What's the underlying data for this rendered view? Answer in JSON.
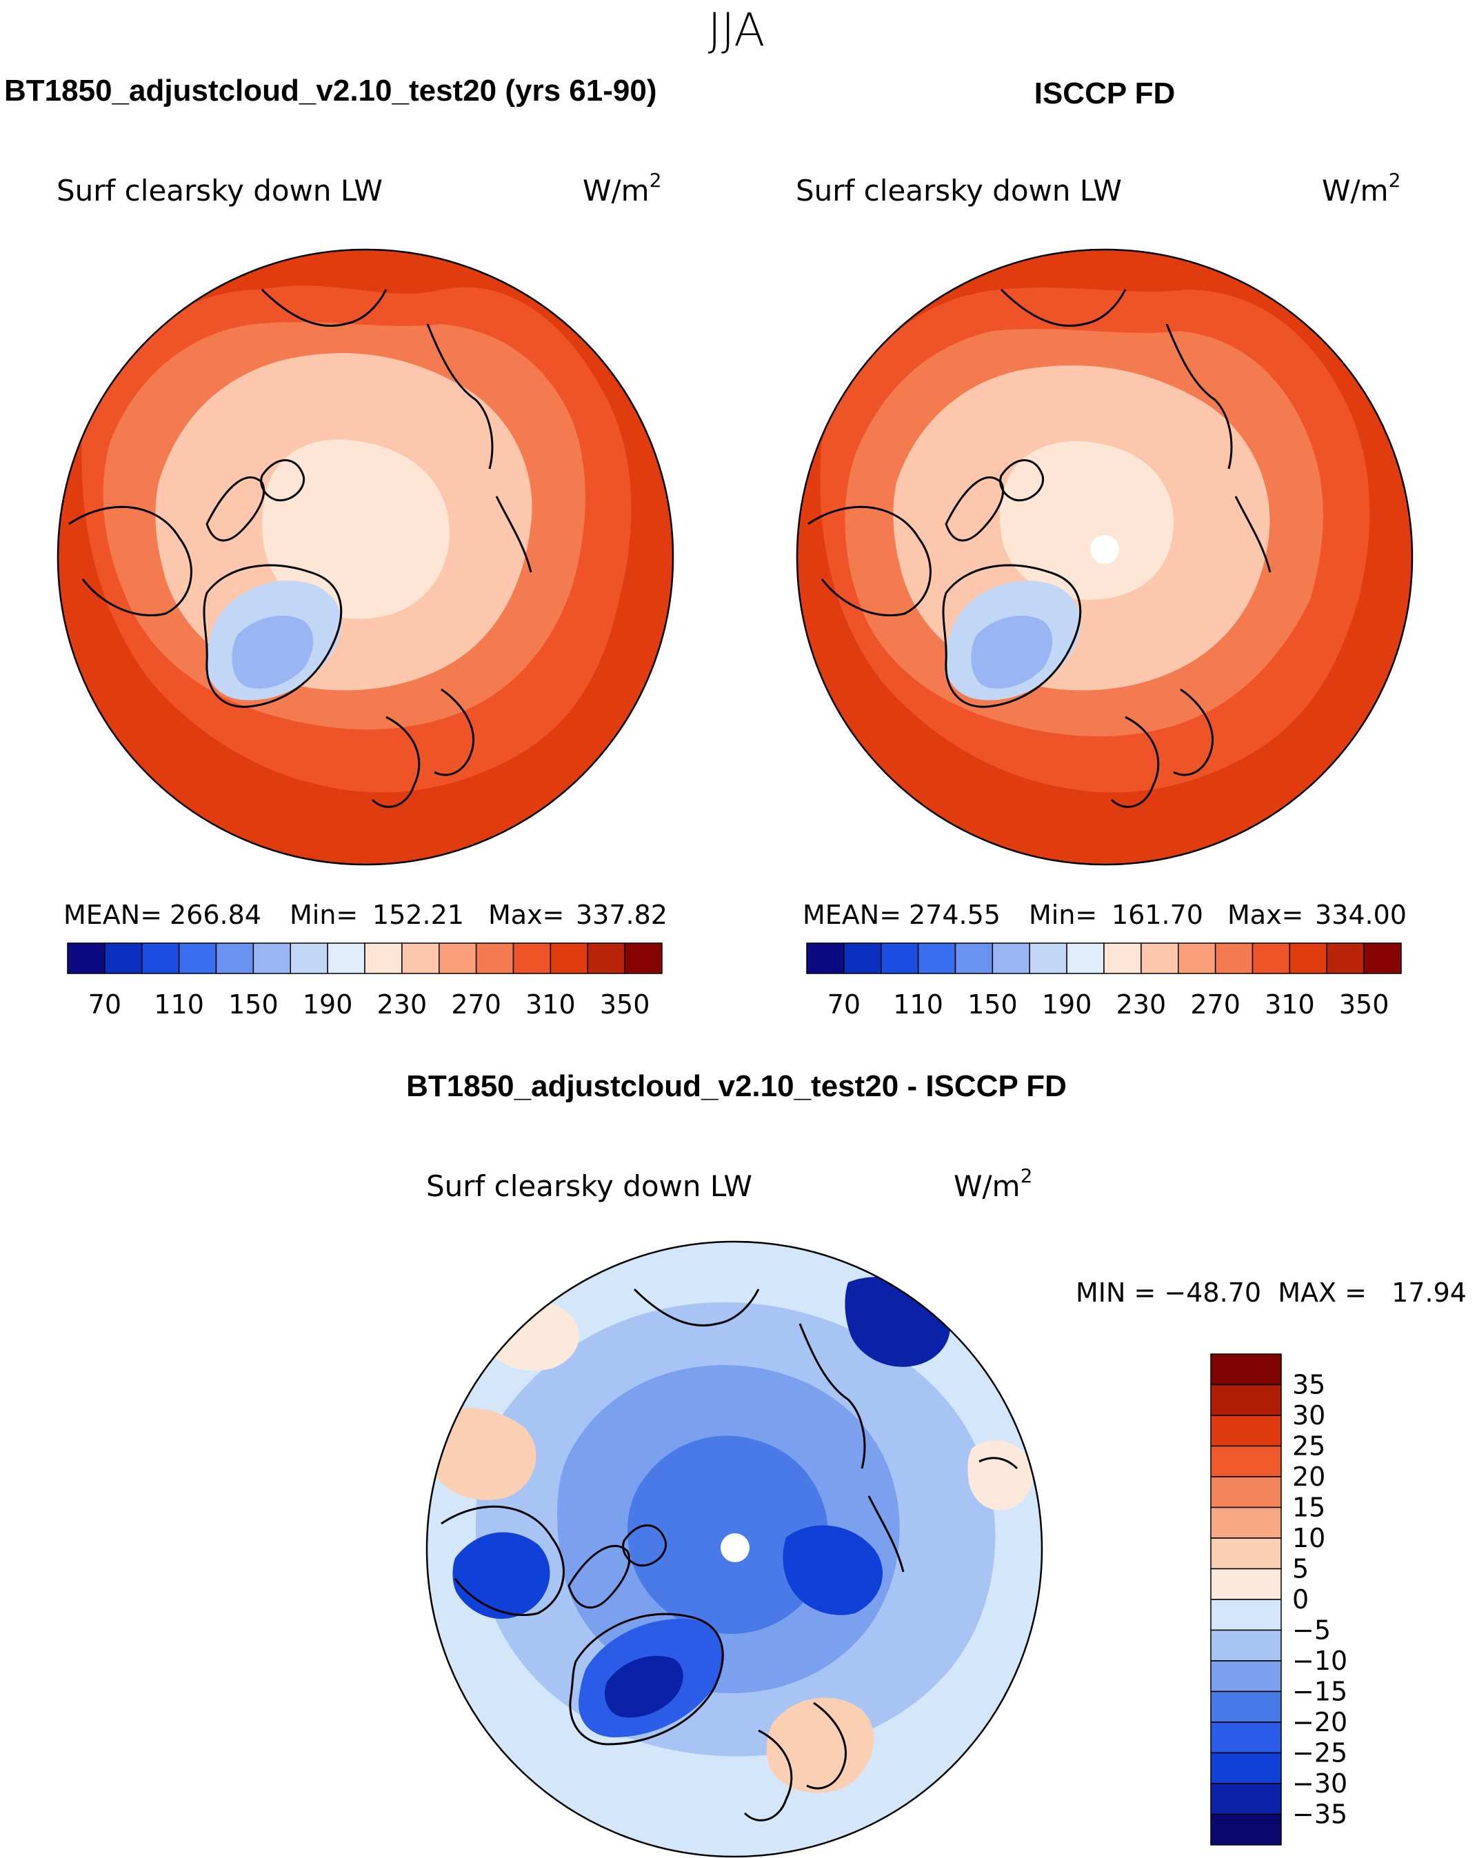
{
  "season": "JJA",
  "panels": {
    "model": {
      "title": "BT1850_adjustcloud_v2.10_test20 (yrs 61-90)",
      "var_label": "Surf clearsky down LW",
      "units": "W/m",
      "units_sup": "2",
      "stats": {
        "mean_label": "MEAN=",
        "mean": "266.84",
        "min_label": "Min=",
        "min": "152.21",
        "max_label": "Max=",
        "max": "337.82"
      },
      "colorbar_ticks": [
        "70",
        "110",
        "150",
        "190",
        "230",
        "270",
        "310",
        "350"
      ]
    },
    "obs": {
      "title": "ISCCP FD",
      "var_label": "Surf clearsky down LW",
      "units": "W/m",
      "units_sup": "2",
      "stats": {
        "mean_label": "MEAN=",
        "mean": "274.55",
        "min_label": "Min=",
        "min": "161.70",
        "max_label": "Max=",
        "max": "334.00"
      },
      "colorbar_ticks": [
        "70",
        "110",
        "150",
        "190",
        "230",
        "270",
        "310",
        "350"
      ]
    },
    "diff": {
      "title": "BT1850_adjustcloud_v2.10_test20 - ISCCP FD",
      "var_label": "Surf clearsky down LW",
      "units": "W/m",
      "units_sup": "2",
      "minmax_text": "MIN = −48.70  MAX =   17.94",
      "colorbar_ticks": [
        "35",
        "30",
        "25",
        "20",
        "15",
        "10",
        "5",
        "0",
        "−5",
        "−10",
        "−15",
        "−20",
        "−25",
        "−30",
        "−35"
      ]
    }
  },
  "chart_data": [
    {
      "type": "heatmap",
      "projection": "north-polar-stereographic",
      "title": "BT1850_adjustcloud_v2.10_test20 (yrs 61-90)",
      "variable": "Surf clearsky down LW",
      "units": "W/m2",
      "mean": 266.84,
      "min": 152.21,
      "max": 337.82,
      "levels": [
        70,
        90,
        110,
        130,
        150,
        170,
        190,
        210,
        230,
        250,
        270,
        290,
        310,
        330,
        350
      ],
      "palette": [
        "#0a0a82",
        "#0b2fbe",
        "#1a4ee0",
        "#3a6ef0",
        "#6a92f0",
        "#9ab6f2",
        "#c2d6f6",
        "#e0ecfa",
        "#fde6d6",
        "#fcc7ac",
        "#f9a07a",
        "#f47a50",
        "#ee5428",
        "#e03c10",
        "#b82408",
        "#860404"
      ],
      "field": [
        {
          "region": "outer-ring",
          "level_index": 13
        },
        {
          "region": "mid-ring",
          "level_index": 12
        },
        {
          "region": "inner-ring",
          "level_index": 11
        },
        {
          "region": "arctic-ocean",
          "level_index": 9
        },
        {
          "region": "central-arctic",
          "level_index": 8
        },
        {
          "region": "greenland-edge",
          "level_index": 6
        },
        {
          "region": "greenland-core",
          "level_index": 4
        }
      ]
    },
    {
      "type": "heatmap",
      "projection": "north-polar-stereographic",
      "title": "ISCCP FD",
      "variable": "Surf clearsky down LW",
      "units": "W/m2",
      "mean": 274.55,
      "min": 161.7,
      "max": 334.0,
      "levels": [
        70,
        90,
        110,
        130,
        150,
        170,
        190,
        210,
        230,
        250,
        270,
        290,
        310,
        330,
        350
      ],
      "palette": [
        "#0a0a82",
        "#0b2fbe",
        "#1a4ee0",
        "#3a6ef0",
        "#6a92f0",
        "#9ab6f2",
        "#c2d6f6",
        "#e0ecfa",
        "#fde6d6",
        "#fcc7ac",
        "#f9a07a",
        "#f47a50",
        "#ee5428",
        "#e03c10",
        "#b82408",
        "#860404"
      ],
      "field": [
        {
          "region": "outer-ring",
          "level_index": 13
        },
        {
          "region": "mid-ring",
          "level_index": 12
        },
        {
          "region": "inner-ring",
          "level_index": 11
        },
        {
          "region": "arctic-ocean",
          "level_index": 9
        },
        {
          "region": "central-arctic",
          "level_index": 9
        },
        {
          "region": "greenland-edge",
          "level_index": 6
        },
        {
          "region": "greenland-core",
          "level_index": 4
        },
        {
          "region": "pole-missing",
          "level_index": -1
        }
      ]
    },
    {
      "type": "heatmap",
      "projection": "north-polar-stereographic",
      "title": "BT1850_adjustcloud_v2.10_test20 - ISCCP FD",
      "variable": "Surf clearsky down LW",
      "units": "W/m2",
      "min": -48.7,
      "max": 17.94,
      "levels": [
        -35,
        -30,
        -25,
        -20,
        -15,
        -10,
        -5,
        0,
        5,
        10,
        15,
        20,
        25,
        30,
        35
      ],
      "palette": [
        "#08086e",
        "#0b22a8",
        "#1040d8",
        "#2a5ce8",
        "#4a7ae8",
        "#7aa0ee",
        "#a8c4f4",
        "#d4e6fa",
        "#fde9dc",
        "#fbcfb4",
        "#f8a884",
        "#f4845a",
        "#ee5a2c",
        "#de3810",
        "#b01e06",
        "#7e0404"
      ],
      "field": [
        {
          "region": "background",
          "level_index": 7
        },
        {
          "region": "arctic-ocean",
          "level_index": 5
        },
        {
          "region": "central-arctic",
          "level_index": 4
        },
        {
          "region": "canadian-archipelago",
          "level_index": 2
        },
        {
          "region": "greenland",
          "level_index": 3
        },
        {
          "region": "north-america-west",
          "level_index": 9
        },
        {
          "region": "scandinavia",
          "level_index": 9
        },
        {
          "region": "pole-missing",
          "level_index": -1
        }
      ]
    }
  ]
}
